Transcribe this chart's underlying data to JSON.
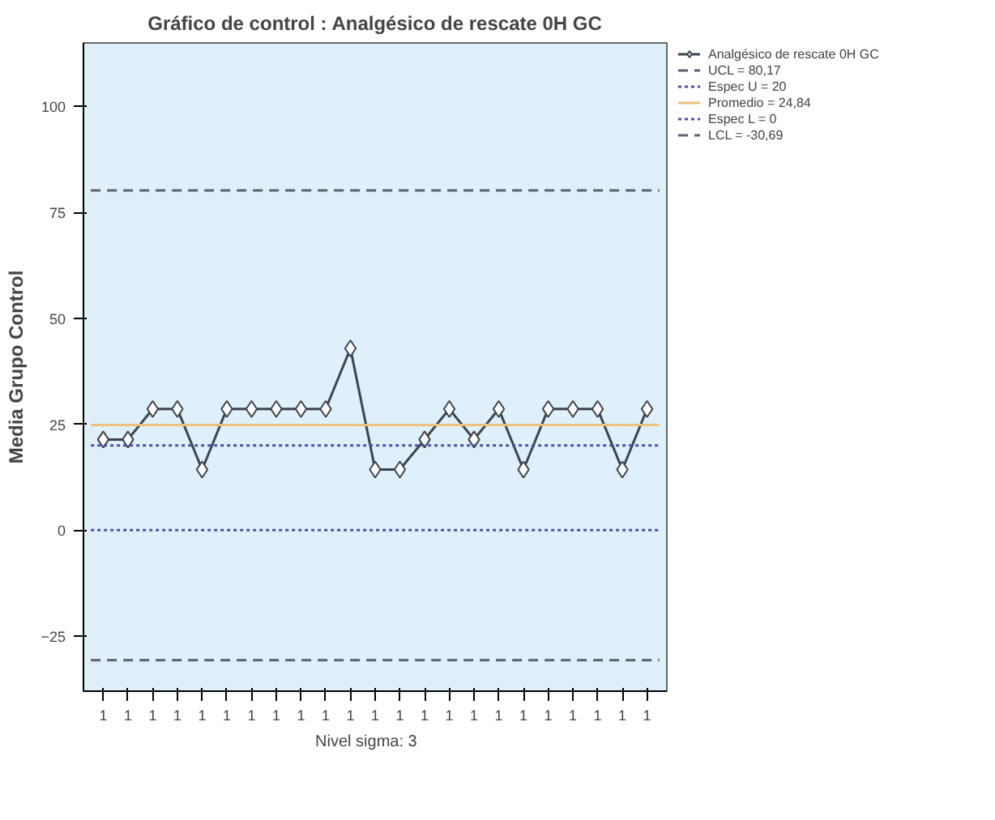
{
  "chart_data": {
    "type": "line",
    "title": "Gráfico de control : Analgésico de rescate 0H GC",
    "xlabel": "Nivel sigma:     3",
    "ylabel": "Media Grupo Control",
    "categories": [
      "1",
      "1",
      "1",
      "1",
      "1",
      "1",
      "1",
      "1",
      "1",
      "1",
      "1",
      "1",
      "1",
      "1",
      "1",
      "1",
      "1",
      "1",
      "1",
      "1",
      "1",
      "1",
      "1"
    ],
    "series": [
      {
        "name": "Analgésico de rescate 0H GC",
        "color": "#3c4450",
        "values": [
          21.4,
          21.4,
          28.6,
          28.6,
          14.3,
          28.6,
          28.6,
          28.6,
          28.6,
          28.6,
          42.9,
          14.3,
          14.3,
          21.4,
          28.6,
          21.4,
          28.6,
          14.3,
          28.6,
          28.6,
          28.6,
          14.3,
          28.6
        ]
      }
    ],
    "marker": "diamond",
    "line_style": "solid",
    "ylim": [
      -38,
      115
    ],
    "yticks": [
      -25,
      0,
      25,
      50,
      75,
      100
    ],
    "grid": false,
    "legend": "right",
    "ref_lines": [
      {
        "axis": "y",
        "value": 80.17,
        "label": "UCL = 80,17",
        "color": "#5a6270",
        "line_style": "dashed"
      },
      {
        "axis": "y",
        "value": 20,
        "label": "Espec U = 20",
        "color": "#5050a0",
        "line_style": "dotted"
      },
      {
        "axis": "y",
        "value": 24.84,
        "label": "Promedio = 24,84",
        "color": "#f0c080",
        "line_style": "solid"
      },
      {
        "axis": "y",
        "value": 0,
        "label": "Espec L = 0",
        "color": "#5050a0",
        "line_style": "dotted"
      },
      {
        "axis": "y",
        "value": -30.69,
        "label": "LCL = -30,69",
        "color": "#5a6270",
        "line_style": "dashed"
      }
    ]
  }
}
